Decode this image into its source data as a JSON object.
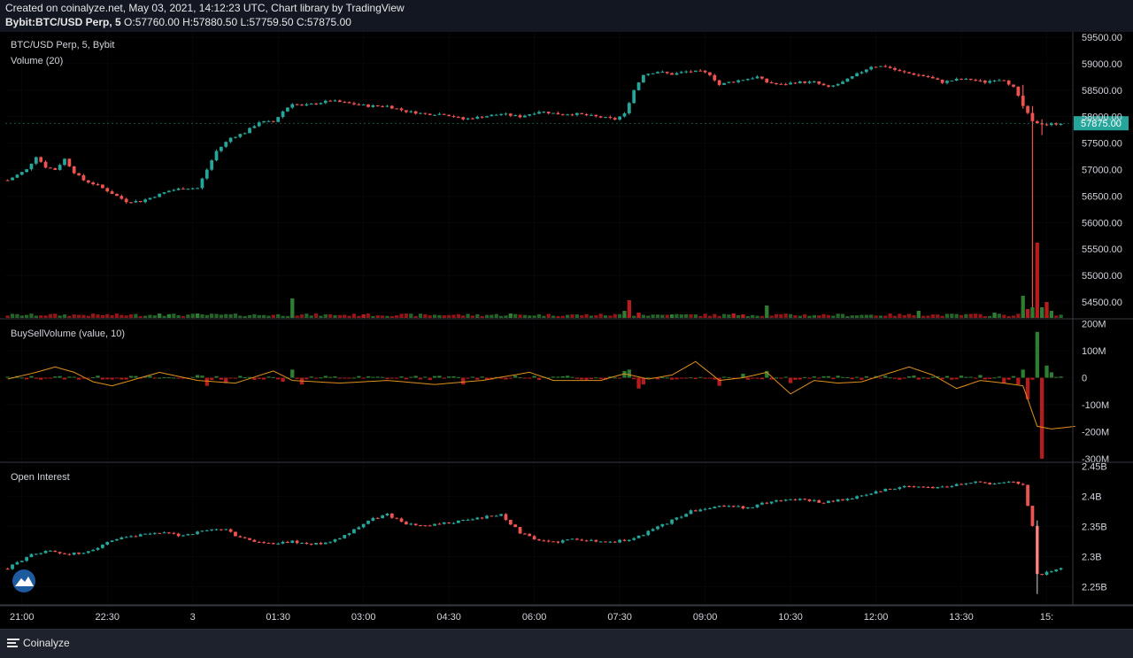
{
  "header": {
    "credit": "Created on coinalyze.net, May 03, 2021, 14:12:23 UTC, Chart library by TradingView",
    "symbol": "Bybit:BTC/USD Perp, 5",
    "ohlc": "O:57760.00 H:57880.50 L:57759.50 C:57875.00"
  },
  "footer": {
    "brand": "Coinalyze"
  },
  "colors": {
    "background": "#000000",
    "up": "#26a69a",
    "down": "#ef5350",
    "vol_up": "#2e7d32",
    "vol_down": "#b71c1c",
    "buysell_line": "#e0901a",
    "grid": "#2a2e39",
    "last_price_tag": "#26a69a"
  },
  "chart_data": [
    {
      "type": "candlestick",
      "title": "BTC/USD Perp, 5, Bybit",
      "ylim": [
        54200,
        59600
      ],
      "y_ticks": [
        59500,
        59000,
        58500,
        58000,
        57500,
        57000,
        56500,
        56000,
        55500,
        55000,
        54500
      ],
      "y_tick_labels": [
        "59500.00",
        "59000.00",
        "58500.00",
        "58000.00",
        "57500.00",
        "57000.00",
        "56500.00",
        "56000.00",
        "55500.00",
        "55000.00",
        "54500.00"
      ],
      "last_price_label": "57875.00",
      "last_price": 57875,
      "close_path": [
        [
          0,
          56800
        ],
        [
          4,
          57000
        ],
        [
          6,
          57250
        ],
        [
          8,
          57050
        ],
        [
          10,
          57000
        ],
        [
          12,
          57200
        ],
        [
          14,
          56950
        ],
        [
          16,
          56800
        ],
        [
          19,
          56700
        ],
        [
          22,
          56550
        ],
        [
          25,
          56400
        ],
        [
          28,
          56400
        ],
        [
          31,
          56500
        ],
        [
          34,
          56600
        ],
        [
          37,
          56650
        ],
        [
          40,
          56650
        ],
        [
          42,
          57000
        ],
        [
          44,
          57350
        ],
        [
          47,
          57600
        ],
        [
          50,
          57700
        ],
        [
          53,
          57900
        ],
        [
          56,
          57900
        ],
        [
          58,
          58100
        ],
        [
          60,
          58250
        ],
        [
          62,
          58200
        ],
        [
          65,
          58250
        ],
        [
          68,
          58300
        ],
        [
          72,
          58250
        ],
        [
          76,
          58200
        ],
        [
          80,
          58200
        ],
        [
          84,
          58100
        ],
        [
          88,
          58050
        ],
        [
          92,
          58050
        ],
        [
          96,
          57950
        ],
        [
          100,
          58000
        ],
        [
          104,
          58050
        ],
        [
          108,
          58000
        ],
        [
          112,
          58100
        ],
        [
          116,
          58050
        ],
        [
          120,
          58050
        ],
        [
          124,
          58000
        ],
        [
          128,
          57950
        ],
        [
          130,
          58050
        ],
        [
          132,
          58500
        ],
        [
          134,
          58800
        ],
        [
          137,
          58850
        ],
        [
          140,
          58800
        ],
        [
          143,
          58850
        ],
        [
          146,
          58850
        ],
        [
          148,
          58800
        ],
        [
          150,
          58600
        ],
        [
          152,
          58650
        ],
        [
          155,
          58700
        ],
        [
          158,
          58750
        ],
        [
          160,
          58650
        ],
        [
          163,
          58600
        ],
        [
          166,
          58650
        ],
        [
          170,
          58650
        ],
        [
          173,
          58550
        ],
        [
          176,
          58650
        ],
        [
          179,
          58800
        ],
        [
          182,
          58950
        ],
        [
          185,
          58950
        ],
        [
          188,
          58850
        ],
        [
          191,
          58800
        ],
        [
          194,
          58750
        ],
        [
          197,
          58650
        ],
        [
          200,
          58700
        ],
        [
          203,
          58700
        ],
        [
          206,
          58650
        ],
        [
          208,
          58700
        ],
        [
          210,
          58700
        ],
        [
          212,
          58550
        ],
        [
          214,
          58200
        ],
        [
          216,
          57900
        ],
        [
          219,
          57850
        ],
        [
          222,
          57875
        ]
      ],
      "spike_wicks": [
        [
          214,
          58600,
          58150
        ],
        [
          216,
          58200,
          54400
        ],
        [
          218,
          57950,
          57650
        ]
      ],
      "volume_panel": "Volume (20)",
      "volume_spikes": [
        [
          32,
          5
        ],
        [
          34,
          4
        ],
        [
          40,
          5
        ],
        [
          60,
          22
        ],
        [
          75,
          4
        ],
        [
          106,
          5
        ],
        [
          130,
          8
        ],
        [
          131,
          20
        ],
        [
          133,
          6
        ],
        [
          140,
          4
        ],
        [
          153,
          5
        ],
        [
          155,
          4
        ],
        [
          160,
          14
        ],
        [
          192,
          8
        ],
        [
          208,
          6
        ],
        [
          214,
          25
        ],
        [
          215,
          10
        ],
        [
          216,
          12
        ],
        [
          217,
          85
        ],
        [
          218,
          12
        ],
        [
          219,
          18
        ],
        [
          220,
          8
        ]
      ]
    },
    {
      "type": "bar+line",
      "title": "BuySellVolume (value, 10)",
      "ylim": [
        -310,
        215
      ],
      "y_ticks": [
        200,
        100,
        0,
        -100,
        -200,
        -300
      ],
      "y_tick_labels": [
        "200M",
        "100M",
        "0",
        "-100M",
        "-200M",
        "-300M"
      ],
      "bar_spikes": [
        [
          40,
          10
        ],
        [
          42,
          -30
        ],
        [
          46,
          -20
        ],
        [
          58,
          -15
        ],
        [
          60,
          30
        ],
        [
          62,
          -25
        ],
        [
          96,
          -25
        ],
        [
          130,
          25
        ],
        [
          131,
          30
        ],
        [
          133,
          -40
        ],
        [
          134,
          -25
        ],
        [
          150,
          -30
        ],
        [
          155,
          15
        ],
        [
          160,
          25
        ],
        [
          165,
          -20
        ],
        [
          205,
          10
        ],
        [
          210,
          -20
        ],
        [
          213,
          -25
        ],
        [
          214,
          30
        ],
        [
          215,
          -80
        ],
        [
          217,
          170
        ],
        [
          218,
          -300
        ],
        [
          219,
          45
        ],
        [
          220,
          20
        ]
      ],
      "line_path": [
        [
          0,
          -5
        ],
        [
          6,
          20
        ],
        [
          10,
          40
        ],
        [
          14,
          20
        ],
        [
          18,
          -15
        ],
        [
          22,
          -30
        ],
        [
          26,
          -10
        ],
        [
          32,
          20
        ],
        [
          40,
          -10
        ],
        [
          48,
          -20
        ],
        [
          56,
          25
        ],
        [
          60,
          -10
        ],
        [
          70,
          -20
        ],
        [
          80,
          -10
        ],
        [
          90,
          -25
        ],
        [
          100,
          -10
        ],
        [
          110,
          20
        ],
        [
          115,
          -10
        ],
        [
          125,
          -10
        ],
        [
          130,
          15
        ],
        [
          135,
          -5
        ],
        [
          140,
          10
        ],
        [
          145,
          60
        ],
        [
          150,
          -10
        ],
        [
          155,
          0
        ],
        [
          160,
          20
        ],
        [
          165,
          -60
        ],
        [
          170,
          -10
        ],
        [
          175,
          -20
        ],
        [
          180,
          -15
        ],
        [
          190,
          40
        ],
        [
          195,
          10
        ],
        [
          200,
          -40
        ],
        [
          205,
          -10
        ],
        [
          210,
          -20
        ],
        [
          214,
          -30
        ],
        [
          217,
          -180
        ],
        [
          220,
          -190
        ],
        [
          225,
          -180
        ]
      ]
    },
    {
      "type": "candlestick",
      "title": "Open Interest",
      "ylim": [
        2.22,
        2.455
      ],
      "y_ticks": [
        2.45,
        2.4,
        2.35,
        2.3,
        2.25
      ],
      "y_tick_labels": [
        "2.45B",
        "2.4B",
        "2.35B",
        "2.3B",
        "2.25B"
      ],
      "close_path": [
        [
          0,
          2.28
        ],
        [
          4,
          2.3
        ],
        [
          8,
          2.31
        ],
        [
          12,
          2.305
        ],
        [
          16,
          2.305
        ],
        [
          20,
          2.32
        ],
        [
          24,
          2.33
        ],
        [
          28,
          2.335
        ],
        [
          32,
          2.34
        ],
        [
          36,
          2.335
        ],
        [
          40,
          2.34
        ],
        [
          44,
          2.345
        ],
        [
          46,
          2.345
        ],
        [
          48,
          2.335
        ],
        [
          52,
          2.325
        ],
        [
          56,
          2.32
        ],
        [
          60,
          2.325
        ],
        [
          64,
          2.32
        ],
        [
          68,
          2.325
        ],
        [
          72,
          2.34
        ],
        [
          76,
          2.36
        ],
        [
          80,
          2.37
        ],
        [
          84,
          2.355
        ],
        [
          88,
          2.35
        ],
        [
          92,
          2.355
        ],
        [
          96,
          2.36
        ],
        [
          100,
          2.365
        ],
        [
          104,
          2.37
        ],
        [
          108,
          2.34
        ],
        [
          112,
          2.325
        ],
        [
          116,
          2.325
        ],
        [
          120,
          2.33
        ],
        [
          124,
          2.325
        ],
        [
          128,
          2.325
        ],
        [
          132,
          2.33
        ],
        [
          136,
          2.345
        ],
        [
          140,
          2.36
        ],
        [
          144,
          2.375
        ],
        [
          148,
          2.38
        ],
        [
          152,
          2.385
        ],
        [
          156,
          2.38
        ],
        [
          160,
          2.39
        ],
        [
          164,
          2.395
        ],
        [
          168,
          2.395
        ],
        [
          172,
          2.39
        ],
        [
          176,
          2.395
        ],
        [
          180,
          2.4
        ],
        [
          184,
          2.41
        ],
        [
          188,
          2.415
        ],
        [
          192,
          2.415
        ],
        [
          196,
          2.415
        ],
        [
          200,
          2.42
        ],
        [
          204,
          2.425
        ],
        [
          208,
          2.42
        ],
        [
          212,
          2.425
        ],
        [
          214,
          2.42
        ],
        [
          216,
          2.35
        ],
        [
          217,
          2.27
        ],
        [
          220,
          2.275
        ],
        [
          222,
          2.28
        ]
      ]
    }
  ],
  "x_axis": {
    "labels": [
      "21:00",
      "22:30",
      "3",
      "01:30",
      "03:00",
      "04:30",
      "06:00",
      "07:30",
      "09:00",
      "10:30",
      "12:00",
      "13:30",
      "15:"
    ],
    "bar_index": [
      3,
      21,
      39,
      57,
      75,
      93,
      111,
      129,
      147,
      165,
      183,
      201,
      219
    ]
  }
}
